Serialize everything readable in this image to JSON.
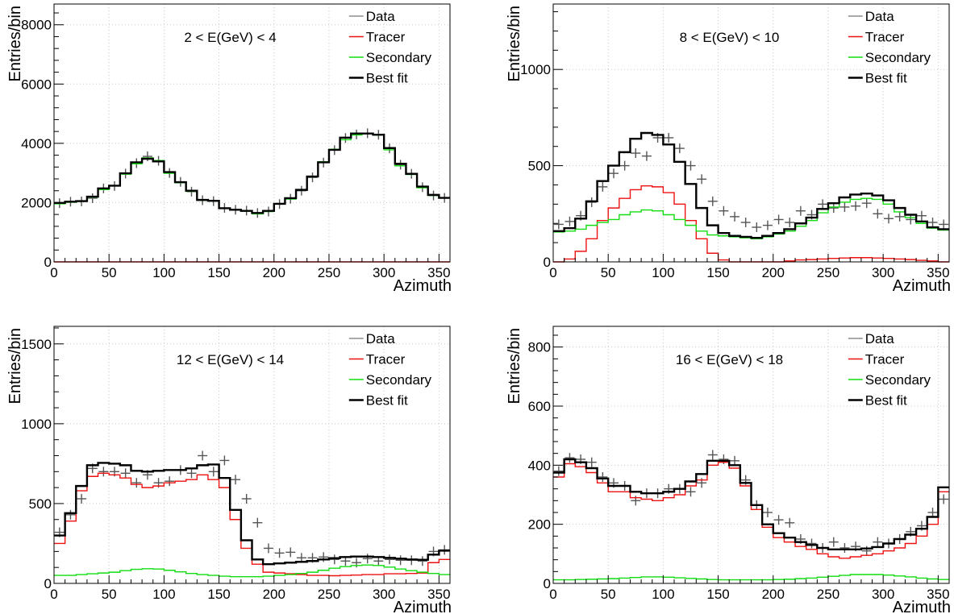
{
  "chart_data": [
    {
      "type": "line",
      "title": "2 < E(GeV) < 4",
      "xlabel": "Azimuth",
      "ylabel": "Entries/bin",
      "xlim": [
        0,
        360
      ],
      "ylim": [
        0,
        8700
      ],
      "xticks": [
        0,
        50,
        100,
        150,
        200,
        250,
        300,
        350
      ],
      "yticks": [
        0,
        2000,
        4000,
        6000,
        8000
      ],
      "ytick_labels": [
        "0",
        "2000",
        "4000",
        "6000",
        "8000"
      ],
      "grid": true,
      "legend_position": "top-right",
      "bin_edges": [
        0,
        10,
        20,
        30,
        40,
        50,
        60,
        70,
        80,
        90,
        100,
        110,
        120,
        130,
        140,
        150,
        160,
        170,
        180,
        190,
        200,
        210,
        220,
        230,
        240,
        250,
        260,
        270,
        280,
        290,
        300,
        310,
        320,
        330,
        340,
        350,
        360
      ],
      "series": [
        {
          "name": "Data",
          "kind": "markers",
          "color": "#555555",
          "values": [
            1980,
            2030,
            2040,
            2150,
            2480,
            2560,
            2980,
            3330,
            3560,
            3410,
            3000,
            2700,
            2370,
            2080,
            2050,
            1820,
            1760,
            1730,
            1650,
            1700,
            1950,
            2130,
            2400,
            2850,
            3350,
            3770,
            4180,
            4300,
            4340,
            4290,
            3830,
            3280,
            2970,
            2520,
            2240,
            2160
          ]
        },
        {
          "name": "Tracer",
          "kind": "step",
          "color": "#ee1111",
          "values": [
            0,
            0,
            0,
            0,
            0,
            0,
            0,
            0,
            0,
            0,
            0,
            0,
            0,
            0,
            0,
            0,
            0,
            0,
            0,
            0,
            0,
            0,
            0,
            0,
            0,
            0,
            0,
            0,
            0,
            0,
            0,
            0,
            0,
            0,
            0,
            0
          ]
        },
        {
          "name": "Secondary",
          "kind": "step",
          "color": "#11dd11",
          "values": [
            1960,
            2010,
            2040,
            2180,
            2440,
            2560,
            2960,
            3310,
            3510,
            3420,
            2990,
            2670,
            2380,
            2080,
            2050,
            1800,
            1760,
            1710,
            1620,
            1700,
            1950,
            2120,
            2420,
            2870,
            3380,
            3800,
            4120,
            4280,
            4320,
            4280,
            3780,
            3240,
            2950,
            2500,
            2240,
            2170
          ]
        },
        {
          "name": "Best fit",
          "kind": "step",
          "color": "#000000",
          "values": [
            1990,
            2030,
            2050,
            2200,
            2480,
            2570,
            2990,
            3360,
            3480,
            3390,
            3030,
            2690,
            2400,
            2090,
            2060,
            1810,
            1760,
            1720,
            1650,
            1720,
            1960,
            2150,
            2430,
            2880,
            3360,
            3780,
            4190,
            4330,
            4330,
            4290,
            3840,
            3310,
            2970,
            2540,
            2260,
            2160
          ]
        }
      ]
    },
    {
      "type": "line",
      "title": "8 < E(GeV) < 10",
      "xlabel": "Azimuth",
      "ylabel": "Entries/bin",
      "xlim": [
        0,
        360
      ],
      "ylim": [
        0,
        1340
      ],
      "xticks": [
        0,
        50,
        100,
        150,
        200,
        250,
        300,
        350
      ],
      "yticks": [
        0,
        500,
        1000
      ],
      "ytick_labels": [
        "0",
        "500",
        "1000"
      ],
      "grid": true,
      "legend_position": "top-right",
      "bin_edges": [
        0,
        10,
        20,
        30,
        40,
        50,
        60,
        70,
        80,
        90,
        100,
        110,
        120,
        130,
        140,
        150,
        160,
        170,
        180,
        190,
        200,
        210,
        220,
        230,
        240,
        250,
        260,
        270,
        280,
        290,
        300,
        310,
        320,
        330,
        340,
        350,
        360
      ],
      "series": [
        {
          "name": "Data",
          "kind": "markers",
          "color": "#555555",
          "values": [
            195,
            210,
            240,
            310,
            390,
            460,
            500,
            565,
            550,
            645,
            645,
            590,
            500,
            430,
            315,
            265,
            235,
            205,
            180,
            190,
            220,
            205,
            265,
            245,
            300,
            280,
            285,
            290,
            305,
            250,
            225,
            235,
            220,
            240,
            205,
            195
          ]
        },
        {
          "name": "Tracer",
          "kind": "step",
          "color": "#ee1111",
          "values": [
            0,
            15,
            55,
            120,
            215,
            280,
            330,
            375,
            395,
            390,
            360,
            300,
            215,
            120,
            45,
            10,
            0,
            0,
            0,
            0,
            0,
            5,
            10,
            12,
            15,
            18,
            20,
            22,
            22,
            20,
            18,
            15,
            12,
            8,
            5,
            0
          ]
        },
        {
          "name": "Secondary",
          "kind": "step",
          "color": "#11dd11",
          "values": [
            155,
            160,
            170,
            190,
            205,
            220,
            245,
            260,
            270,
            265,
            245,
            220,
            190,
            160,
            140,
            135,
            130,
            125,
            120,
            130,
            145,
            160,
            185,
            215,
            255,
            285,
            310,
            325,
            330,
            325,
            300,
            260,
            230,
            200,
            175,
            165
          ]
        },
        {
          "name": "Best fit",
          "kind": "step",
          "color": "#000000",
          "values": [
            160,
            175,
            225,
            315,
            420,
            500,
            570,
            640,
            670,
            660,
            610,
            520,
            405,
            280,
            190,
            150,
            135,
            130,
            125,
            135,
            150,
            170,
            200,
            230,
            275,
            305,
            335,
            350,
            355,
            345,
            320,
            280,
            245,
            210,
            180,
            170
          ]
        }
      ]
    },
    {
      "type": "line",
      "title": "12 < E(GeV) < 14",
      "xlabel": "Azimuth",
      "ylabel": "Entries/bin",
      "xlim": [
        0,
        360
      ],
      "ylim": [
        0,
        1610
      ],
      "xticks": [
        0,
        50,
        100,
        150,
        200,
        250,
        300,
        350
      ],
      "yticks": [
        0,
        500,
        1000,
        1500
      ],
      "ytick_labels": [
        "0",
        "500",
        "1000",
        "1500"
      ],
      "grid": true,
      "legend_position": "top-right",
      "bin_edges": [
        0,
        10,
        20,
        30,
        40,
        50,
        60,
        70,
        80,
        90,
        100,
        110,
        120,
        130,
        140,
        150,
        160,
        170,
        180,
        190,
        200,
        210,
        220,
        230,
        240,
        250,
        260,
        270,
        280,
        290,
        300,
        310,
        320,
        330,
        340,
        350,
        360
      ],
      "series": [
        {
          "name": "Data",
          "kind": "markers",
          "color": "#555555",
          "values": [
            320,
            430,
            530,
            720,
            700,
            700,
            690,
            630,
            680,
            630,
            640,
            710,
            690,
            800,
            700,
            770,
            650,
            530,
            380,
            220,
            190,
            195,
            160,
            160,
            165,
            150,
            140,
            130,
            155,
            140,
            150,
            145,
            145,
            140,
            200,
            210
          ]
        },
        {
          "name": "Tracer",
          "kind": "step",
          "color": "#ee1111",
          "values": [
            250,
            390,
            580,
            670,
            690,
            680,
            660,
            620,
            600,
            610,
            630,
            640,
            650,
            680,
            650,
            600,
            400,
            220,
            120,
            70,
            65,
            60,
            55,
            50,
            50,
            48,
            50,
            52,
            55,
            55,
            60,
            60,
            62,
            65,
            130,
            150
          ]
        },
        {
          "name": "Secondary",
          "kind": "step",
          "color": "#11dd11",
          "values": [
            50,
            50,
            55,
            60,
            65,
            70,
            80,
            88,
            92,
            90,
            82,
            72,
            62,
            55,
            50,
            45,
            42,
            42,
            42,
            45,
            50,
            55,
            62,
            70,
            82,
            95,
            105,
            112,
            115,
            112,
            102,
            90,
            80,
            70,
            62,
            55
          ]
        },
        {
          "name": "Best fit",
          "kind": "step",
          "color": "#000000",
          "values": [
            300,
            440,
            610,
            740,
            755,
            750,
            740,
            705,
            700,
            705,
            710,
            710,
            720,
            740,
            745,
            660,
            460,
            270,
            150,
            120,
            125,
            130,
            135,
            140,
            150,
            158,
            165,
            168,
            168,
            165,
            160,
            155,
            150,
            148,
            180,
            205
          ]
        }
      ]
    },
    {
      "type": "line",
      "title": "16 < E(GeV) < 18",
      "xlabel": "Azimuth",
      "ylabel": "Entries/bin",
      "xlim": [
        0,
        360
      ],
      "ylim": [
        0,
        870
      ],
      "xticks": [
        0,
        50,
        100,
        150,
        200,
        250,
        300,
        350
      ],
      "yticks": [
        0,
        200,
        400,
        600,
        800
      ],
      "ytick_labels": [
        "0",
        "200",
        "400",
        "600",
        "800"
      ],
      "grid": true,
      "legend_position": "top-right",
      "bin_edges": [
        0,
        10,
        20,
        30,
        40,
        50,
        60,
        70,
        80,
        90,
        100,
        110,
        120,
        130,
        140,
        150,
        160,
        170,
        180,
        190,
        200,
        210,
        220,
        230,
        240,
        250,
        260,
        270,
        280,
        290,
        300,
        310,
        320,
        330,
        340,
        350,
        360
      ],
      "series": [
        {
          "name": "Data",
          "kind": "markers",
          "color": "#555555",
          "values": [
            380,
            425,
            420,
            410,
            360,
            340,
            330,
            280,
            305,
            305,
            320,
            320,
            310,
            340,
            435,
            420,
            415,
            350,
            265,
            240,
            215,
            205,
            150,
            135,
            120,
            140,
            120,
            125,
            110,
            140,
            135,
            150,
            175,
            195,
            240,
            285
          ]
        },
        {
          "name": "Tracer",
          "kind": "step",
          "color": "#ee1111",
          "values": [
            360,
            405,
            395,
            375,
            340,
            310,
            310,
            290,
            285,
            280,
            290,
            300,
            330,
            350,
            400,
            410,
            390,
            330,
            250,
            190,
            155,
            140,
            125,
            115,
            100,
            90,
            85,
            90,
            95,
            100,
            110,
            120,
            135,
            160,
            200,
            310
          ]
        },
        {
          "name": "Secondary",
          "kind": "step",
          "color": "#11dd11",
          "values": [
            12,
            12,
            13,
            14,
            15,
            16,
            18,
            20,
            22,
            22,
            21,
            19,
            17,
            15,
            13,
            12,
            12,
            12,
            12,
            12,
            13,
            14,
            16,
            18,
            21,
            24,
            27,
            30,
            30,
            30,
            28,
            25,
            22,
            18,
            15,
            13
          ]
        },
        {
          "name": "Best fit",
          "kind": "step",
          "color": "#000000",
          "values": [
            375,
            420,
            410,
            390,
            355,
            330,
            330,
            310,
            305,
            305,
            310,
            320,
            345,
            370,
            415,
            415,
            400,
            340,
            265,
            200,
            170,
            155,
            140,
            130,
            120,
            115,
            115,
            115,
            118,
            123,
            135,
            150,
            165,
            185,
            225,
            325
          ]
        }
      ]
    }
  ]
}
